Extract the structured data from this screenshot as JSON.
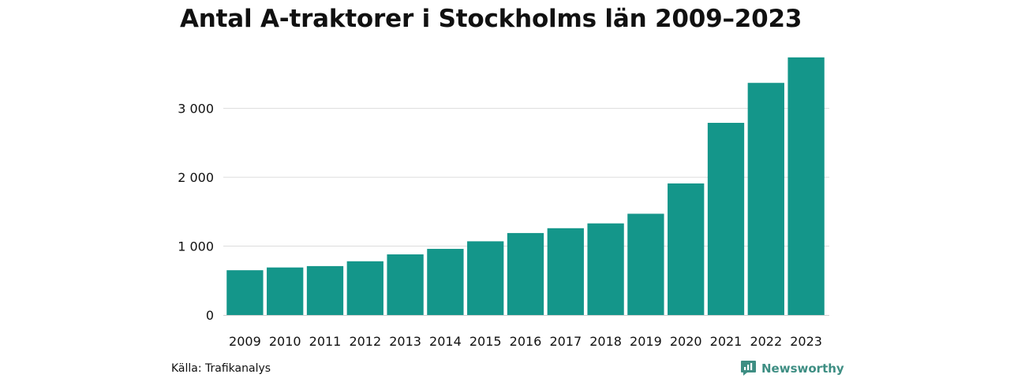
{
  "chart_data": {
    "type": "bar",
    "title": "Antal A-traktorer i Stockholms län 2009–2023",
    "xlabel": "",
    "ylabel": "",
    "categories": [
      "2009",
      "2010",
      "2011",
      "2012",
      "2013",
      "2014",
      "2015",
      "2016",
      "2017",
      "2018",
      "2019",
      "2020",
      "2021",
      "2022",
      "2023"
    ],
    "values": [
      650,
      690,
      710,
      780,
      880,
      960,
      1070,
      1190,
      1260,
      1330,
      1470,
      1910,
      2790,
      3370,
      3740
    ],
    "ylim": [
      0,
      3750
    ],
    "yticks": [
      0,
      1000,
      2000,
      3000
    ],
    "ytick_labels": [
      "0",
      "1 000",
      "2 000",
      "3 000"
    ],
    "grid": true,
    "legend": "none",
    "bar_color": "#14968a"
  },
  "footer": {
    "source": "Källa: Trafikanalys",
    "brand": "Newsworthy",
    "brand_icon": "newsworthy-logo-icon",
    "brand_color": "#3e8e83"
  }
}
